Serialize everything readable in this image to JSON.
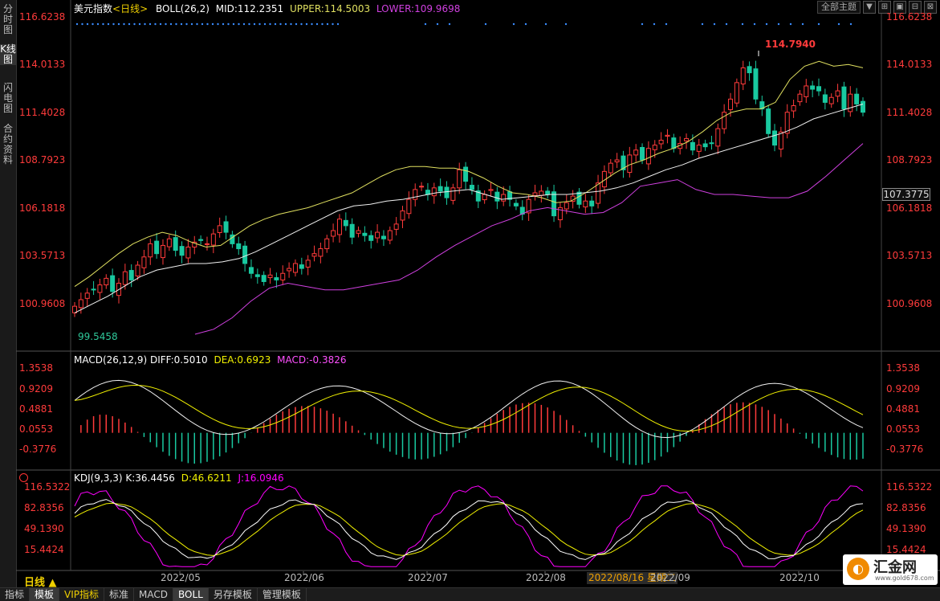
{
  "sidebar": [
    {
      "label": "分时图",
      "active": false
    },
    {
      "label": "K线图",
      "active": true
    },
    {
      "label": "闪电图",
      "active": false
    },
    {
      "label": "合约资料",
      "active": false
    }
  ],
  "topbar": {
    "theme_select": "全部主题",
    "buttons": [
      "▼",
      "⊞",
      "▣",
      "⊟",
      "⊠"
    ]
  },
  "main": {
    "name": "美元指数",
    "period": "<日线>",
    "indicator": "BOLL(26,2)",
    "mid": "MID:112.2351",
    "upper": "UPPER:114.5003",
    "lower": "LOWER:109.9698",
    "y_labels": [
      "116.6238",
      "114.0133",
      "111.4028",
      "108.7923",
      "106.1818",
      "103.5713",
      "100.9608"
    ],
    "high_label": "114.7940",
    "low_label": "99.5458",
    "current_price": "107.3775"
  },
  "macd": {
    "title": "MACD(26,12,9)",
    "diff": "DIFF:0.5010",
    "dea": "DEA:0.6923",
    "macd": "MACD:-0.3826",
    "y_labels": [
      "1.3538",
      "0.9209",
      "0.4881",
      "0.0553",
      "-0.3776"
    ]
  },
  "kdj": {
    "title": "KDJ(9,3,3)",
    "k": "K:36.4456",
    "d": "D:46.6211",
    "j": "J:16.0946",
    "y_labels": [
      "116.5322",
      "82.8356",
      "49.1390",
      "15.4424"
    ]
  },
  "dates": [
    "2022/05",
    "2022/06",
    "2022/07",
    "2022/08",
    "2022/09",
    "2022/10"
  ],
  "crosshair_date": "2022/08/16 星期二",
  "period_button": "日线 ▲",
  "bottom_tabs": [
    {
      "label": "指标",
      "active": false,
      "vip": false
    },
    {
      "label": "模板",
      "active": true,
      "vip": false
    },
    {
      "label": "VIP指标",
      "active": false,
      "vip": true
    },
    {
      "label": "标准",
      "active": false,
      "vip": false
    },
    {
      "label": "MACD",
      "active": false,
      "vip": false
    },
    {
      "label": "BOLL",
      "active": true,
      "vip": false
    },
    {
      "label": "另存模板",
      "active": false,
      "vip": false
    },
    {
      "label": "管理模板",
      "active": false,
      "vip": false
    }
  ],
  "logo": {
    "text": "汇金网",
    "url": "www.gold678.com"
  },
  "colors": {
    "up": "#ff3b3b",
    "down": "#19c9a0",
    "upper": "#e0e060",
    "mid": "#f0f0f0",
    "lower": "#d040e0",
    "dea": "#f0f000",
    "macd_label": "#ff50ff",
    "k": "#ffffff",
    "d": "#f0f000",
    "j": "#ff00ff",
    "axis": "#ff3b3b"
  },
  "chart_data": {
    "type": "candlestick",
    "y_range": [
      98.2,
      117.6
    ],
    "closes": [
      100.0,
      100.4,
      100.8,
      101.0,
      101.3,
      101.7,
      100.9,
      101.4,
      102.1,
      101.6,
      102.5,
      103.0,
      103.8,
      103.2,
      103.7,
      104.1,
      103.4,
      103.1,
      103.6,
      103.9,
      104.0,
      103.8,
      104.4,
      104.9,
      104.5,
      103.8,
      103.5,
      102.6,
      102.0,
      101.8,
      101.5,
      101.9,
      101.6,
      102.0,
      102.3,
      102.6,
      102.3,
      102.8,
      103.2,
      103.5,
      104.1,
      104.6,
      105.3,
      104.9,
      104.2,
      104.6,
      104.3,
      104.0,
      104.5,
      104.1,
      104.6,
      105.0,
      105.8,
      106.5,
      107.1,
      107.3,
      106.8,
      107.2,
      107.0,
      106.6,
      107.2,
      108.3,
      107.6,
      107.1,
      106.4,
      106.8,
      107.1,
      106.4,
      106.8,
      106.5,
      106.1,
      105.6,
      106.5,
      106.9,
      107.0,
      106.8,
      105.5,
      106.0,
      106.3,
      106.7,
      106.2,
      106.4,
      106.1,
      107.5,
      108.2,
      108.7,
      108.9,
      108.3,
      109.2,
      109.5,
      108.9,
      109.6,
      109.8,
      110.1,
      110.4,
      109.6,
      109.9,
      110.2,
      109.5,
      109.8,
      109.7,
      109.9,
      110.8,
      111.8,
      112.6,
      113.6,
      114.5,
      114.2,
      112.6,
      112.0,
      110.5,
      109.8,
      110.6,
      111.8,
      112.2,
      112.9,
      113.4,
      113.2,
      113.1,
      112.4,
      112.7,
      113.1,
      112.0,
      112.9,
      112.3,
      111.8
    ],
    "boll_upper": [
      101.2,
      101.8,
      102.5,
      103.2,
      103.8,
      104.2,
      104.5,
      104.3,
      103.9,
      103.6,
      103.7,
      104.3,
      104.9,
      105.3,
      105.6,
      105.8,
      106.0,
      106.3,
      106.6,
      106.9,
      107.4,
      107.9,
      108.3,
      108.5,
      108.5,
      108.4,
      108.4,
      108.2,
      107.8,
      107.3,
      106.9,
      106.8,
      106.6,
      106.3,
      106.4,
      106.9,
      107.5,
      108.1,
      108.6,
      108.9,
      109.3,
      109.6,
      110.0,
      110.6,
      111.3,
      111.8,
      112.0,
      112.0,
      112.4,
      113.8,
      114.6,
      114.9,
      114.6,
      114.7,
      114.5
    ],
    "boll_mid": [
      99.6,
      100.1,
      100.6,
      101.2,
      101.8,
      102.2,
      102.4,
      102.6,
      102.6,
      102.7,
      102.9,
      103.3,
      103.8,
      104.3,
      104.8,
      105.3,
      105.8,
      106.1,
      106.2,
      106.4,
      106.5,
      106.7,
      106.9,
      107.0,
      107.1,
      106.8,
      106.5,
      106.6,
      106.7,
      106.8,
      106.8,
      106.9,
      107.0,
      107.2,
      107.5,
      107.9,
      108.3,
      108.6,
      109.0,
      109.3,
      109.6,
      109.9,
      110.2,
      110.5,
      110.9,
      111.4,
      111.7,
      112.0,
      112.3
    ],
    "boll_lower": [
      98.3,
      98.6,
      99.3,
      100.3,
      101.1,
      101.4,
      101.2,
      101.0,
      101.0,
      101.2,
      101.4,
      101.6,
      102.2,
      103.0,
      103.7,
      104.3,
      104.9,
      105.3,
      105.8,
      106.0,
      105.8,
      105.6,
      105.7,
      106.3,
      107.3,
      107.5,
      107.7,
      107.1,
      106.8,
      106.8,
      106.7,
      106.6,
      106.6,
      107.0,
      107.9,
      108.9,
      109.9
    ],
    "macd": {
      "diff_last": 0.501,
      "dea_last": 0.6923,
      "macd_last": -0.3826,
      "y_range": [
        -0.7,
        1.45
      ]
    },
    "kdj": {
      "k_last": 36.4456,
      "d_last": 46.6211,
      "j_last": 16.0946,
      "y_range": [
        0,
        118
      ]
    }
  }
}
